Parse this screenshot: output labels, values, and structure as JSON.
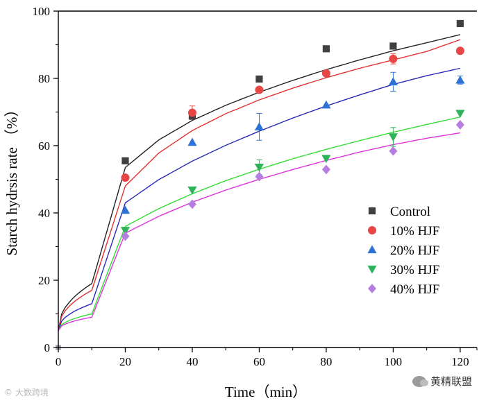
{
  "chart_data": {
    "type": "scatter",
    "xlabel": "Time（min）",
    "ylabel": "Starch hydrsis rate （%）",
    "xlim": [
      0,
      125
    ],
    "ylim": [
      0,
      100
    ],
    "xticks": [
      "0",
      "20",
      "40",
      "60",
      "80",
      "100",
      "120"
    ],
    "yticks": [
      "0",
      "20",
      "40",
      "60",
      "80",
      "100"
    ],
    "legend_position": "right-middle",
    "x": [
      0,
      20,
      40,
      60,
      80,
      100,
      120
    ],
    "series": [
      {
        "name": "Control",
        "marker": "square",
        "color": "#404040",
        "line_color": "#222222",
        "values": [
          0,
          55.5,
          68.8,
          79.8,
          88.8,
          89.6,
          96.3
        ],
        "errors": [
          0,
          0,
          1.0,
          0,
          0,
          0,
          0
        ],
        "fit": [
          10,
          20,
          30,
          40,
          50,
          60,
          70,
          80,
          90,
          100,
          110,
          120
        ],
        "fit_values": [
          19,
          53.5,
          61.7,
          67.5,
          72.0,
          75.9,
          79.4,
          82.6,
          85.5,
          88.2,
          90.6,
          93.0
        ]
      },
      {
        "name": "10% HJF",
        "marker": "circle",
        "color": "#e84545",
        "line_color": "#e03030",
        "values": [
          0,
          50.5,
          69.8,
          76.6,
          81.5,
          85.8,
          88.2
        ],
        "errors": [
          0,
          0,
          2.0,
          0,
          0,
          1.5,
          0
        ],
        "fit": [
          10,
          20,
          30,
          40,
          50,
          60,
          70,
          80,
          90,
          100,
          110,
          120
        ],
        "fit_values": [
          17,
          48.0,
          57.8,
          64.5,
          69.5,
          73.6,
          77.1,
          80.2,
          83.0,
          85.5,
          88.0,
          91.5
        ]
      },
      {
        "name": "20% HJF",
        "marker": "triangle-up",
        "color": "#2f72d6",
        "line_color": "#2a2ab8",
        "values": [
          0,
          40.8,
          61.0,
          65.6,
          72.1,
          79.0,
          79.5
        ],
        "errors": [
          0,
          0,
          0,
          4.0,
          0,
          2.8,
          1.2
        ],
        "fit": [
          10,
          20,
          30,
          40,
          50,
          60,
          70,
          80,
          90,
          100,
          110,
          120
        ],
        "fit_values": [
          13,
          43.0,
          49.9,
          55.4,
          60.1,
          64.3,
          68.2,
          71.8,
          75.1,
          78.2,
          80.8,
          83.0
        ]
      },
      {
        "name": "30% HJF",
        "marker": "triangle-down",
        "color": "#2fb35a",
        "line_color": "#33dd33",
        "values": [
          0,
          34.8,
          46.8,
          53.6,
          56.2,
          62.6,
          69.6
        ],
        "errors": [
          0,
          0,
          0,
          2.2,
          0,
          2.8,
          0
        ],
        "fit": [
          10,
          20,
          30,
          40,
          50,
          60,
          70,
          80,
          90,
          100,
          110,
          120
        ],
        "fit_values": [
          10,
          36.0,
          41.3,
          45.7,
          49.6,
          53.0,
          56.1,
          58.9,
          61.5,
          64.0,
          66.3,
          68.5
        ]
      },
      {
        "name": "40% HJF",
        "marker": "diamond",
        "color": "#b57ee0",
        "line_color": "#dd33dd",
        "values": [
          0,
          33.1,
          42.6,
          50.8,
          52.9,
          58.4,
          66.2
        ],
        "errors": [
          0,
          0,
          0,
          0,
          0,
          0,
          0
        ],
        "fit": [
          10,
          20,
          30,
          40,
          50,
          60,
          70,
          80,
          90,
          100,
          110,
          120
        ],
        "fit_values": [
          9,
          34.0,
          39.0,
          43.2,
          46.8,
          50.0,
          52.9,
          55.6,
          58.1,
          60.3,
          62.2,
          63.8
        ]
      }
    ]
  },
  "watermarks": {
    "left": "© 大数跨境",
    "right": "黄精联盟"
  }
}
